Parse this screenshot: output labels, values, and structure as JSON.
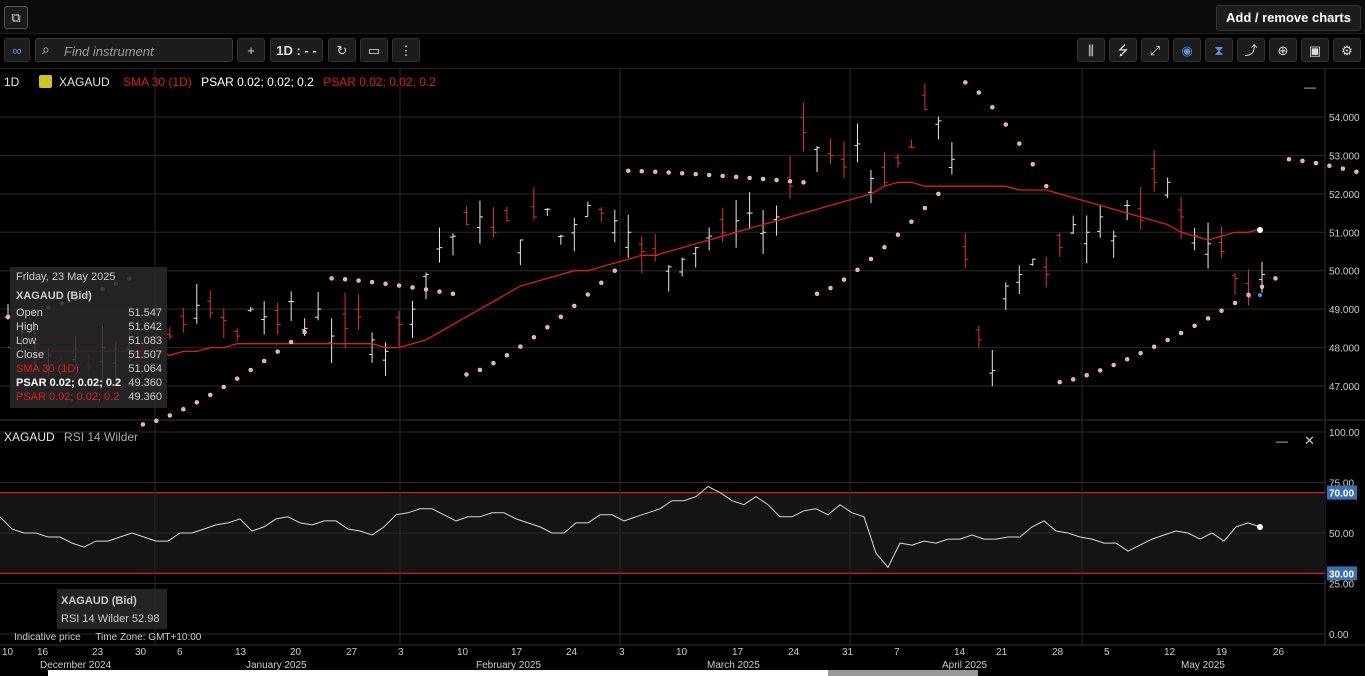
{
  "topbar": {
    "popout_icon": "popout-icon",
    "add_remove_label": "Add / remove charts"
  },
  "toolbar": {
    "search_placeholder": "Find instrument",
    "add_symbol": "+",
    "interval_label": "1D : - -",
    "left_icons": [
      "link-icon",
      "search-icon",
      "refresh-icon",
      "chart-type-icon",
      "more-icon"
    ],
    "right_icons": [
      "indicators-icon",
      "studies-icon",
      "draw-line-icon",
      "hide-icon",
      "crosshair-icon",
      "trend-icon",
      "zoom-icon",
      "camera-icon",
      "settings-icon"
    ]
  },
  "legend": {
    "interval": "1D",
    "symbol": "XAGAUD",
    "sma": "SMA 30 (1D)",
    "psar1": "PSAR 0.02; 0.02; 0.2",
    "psar2": "PSAR 0.02; 0.02; 0.2",
    "minimize": "—"
  },
  "tooltip": {
    "date": "Friday, 23 May 2025",
    "symbol": "XAGAUD (Bid)",
    "open_label": "Open",
    "open": "51.547",
    "high_label": "High",
    "high": "51.642",
    "low_label": "Low",
    "low": "51.083",
    "close_label": "Close",
    "close": "51.507",
    "sma_label": "SMA 30 (1D)",
    "sma": "51.064",
    "psar1_label": "PSAR 0.02; 0.02; 0.2",
    "psar1": "49.360",
    "psar2_label": "PSAR 0.02; 0.02; 0.2",
    "psar2": "49.360"
  },
  "rsi_legend": {
    "symbol": "XAGAUD",
    "name": "RSI 14 Wilder",
    "minimize": "—",
    "close": "✕"
  },
  "rsi_tip": {
    "symbol": "XAGAUD (Bid)",
    "value_label": "RSI 14 Wilder 52.98"
  },
  "price_axis": [
    "54.000",
    "53.000",
    "52.000",
    "51.000",
    "50.000",
    "49.000",
    "48.000",
    "47.000"
  ],
  "rsi_axis": [
    "100.00",
    "75.00",
    "50.00",
    "25.00",
    "0.00"
  ],
  "rsi_marks": [
    "70.00",
    "30.00"
  ],
  "time_ticks": [
    "10",
    "16",
    "23",
    "30",
    "6",
    "13",
    "20",
    "27",
    "3",
    "10",
    "17",
    "24",
    "3",
    "10",
    "17",
    "24",
    "31",
    "7",
    "14",
    "21",
    "28",
    "5",
    "12",
    "19",
    "26"
  ],
  "month_labels": [
    "December 2024",
    "January 2025",
    "February 2025",
    "March 2025",
    "April 2025",
    "May 2025"
  ],
  "bottom_info": {
    "indicative": "Indicative price",
    "timezone": "Time Zone: GMT+10:00"
  },
  "colors": {
    "sma": "#e01b1b",
    "psar": "#f4a6a6",
    "rsi_band": "#cc1f1f",
    "axis_badge": "#3a6fb0"
  },
  "chart_data": {
    "type": "line",
    "price_range": [
      46.2,
      55.2
    ],
    "sma30": [
      48.0,
      48.0,
      47.9,
      47.9,
      47.9,
      47.9,
      47.9,
      47.9,
      47.9,
      47.9,
      47.9,
      47.9,
      47.8,
      47.9,
      47.9,
      48.0,
      48.0,
      48.1,
      48.1,
      48.1,
      48.1,
      48.1,
      48.1,
      48.1,
      48.1,
      48.1,
      48.1,
      48.1,
      48.0,
      48.0,
      48.1,
      48.2,
      48.4,
      48.6,
      48.8,
      49.0,
      49.2,
      49.4,
      49.6,
      49.7,
      49.8,
      49.9,
      50.0,
      50.0,
      50.1,
      50.2,
      50.3,
      50.4,
      50.4,
      50.5,
      50.6,
      50.7,
      50.8,
      50.9,
      51.0,
      51.1,
      51.2,
      51.3,
      51.4,
      51.5,
      51.6,
      51.7,
      51.8,
      51.9,
      52.0,
      52.2,
      52.3,
      52.3,
      52.2,
      52.2,
      52.2,
      52.2,
      52.2,
      52.2,
      52.2,
      52.1,
      52.1,
      52.1,
      52.0,
      51.9,
      51.8,
      51.7,
      51.6,
      51.5,
      51.4,
      51.3,
      51.2,
      51.0,
      50.9,
      50.8,
      50.9,
      51.0,
      51.0,
      51.1
    ],
    "rsi14": [
      58,
      52,
      50,
      50,
      48,
      48,
      45,
      43,
      46,
      46,
      48,
      50,
      48,
      46,
      46,
      50,
      50,
      52,
      54,
      55,
      57,
      51,
      53,
      57,
      58,
      55,
      54,
      56,
      56,
      52,
      51,
      49,
      53,
      59,
      60,
      62,
      62,
      59,
      56,
      58,
      58,
      60,
      60,
      57,
      55,
      53,
      50,
      50,
      55,
      55,
      59,
      59,
      56,
      58,
      60,
      62,
      66,
      66,
      68,
      73,
      70,
      66,
      64,
      68,
      64,
      58,
      58,
      61,
      62,
      59,
      64,
      60,
      58,
      40,
      33,
      45,
      44,
      46,
      45,
      47,
      47,
      49,
      47,
      47,
      48,
      48,
      53,
      56,
      51,
      50,
      48,
      47,
      45,
      45,
      41,
      44,
      47,
      49,
      51,
      50,
      47,
      50,
      46,
      53,
      55,
      53
    ],
    "rsi_levels": [
      70,
      30
    ],
    "last_rsi": 52.98
  }
}
